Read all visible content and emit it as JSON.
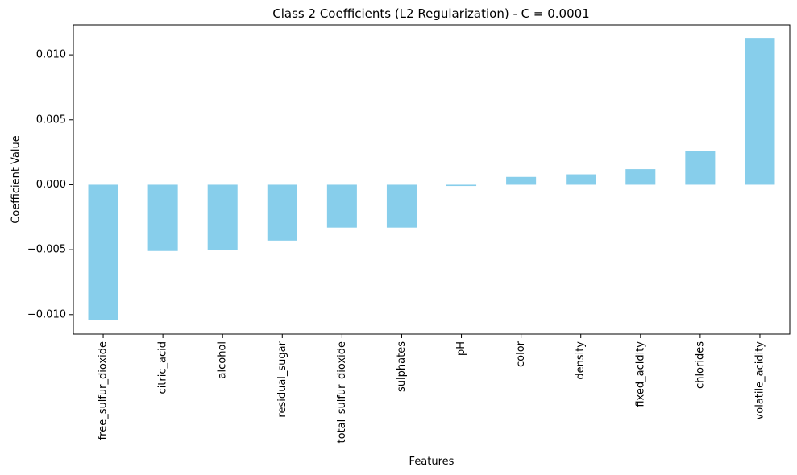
{
  "chart_data": {
    "type": "bar",
    "title": "Class 2 Coefficients (L2 Regularization) - C = 0.0001",
    "xlabel": "Features",
    "ylabel": "Coefficient Value",
    "categories": [
      "free_sulfur_dioxide",
      "citric_acid",
      "alcohol",
      "residual_sugar",
      "total_sulfur_dioxide",
      "sulphates",
      "pH",
      "color",
      "density",
      "fixed_acidity",
      "chlorides",
      "volatile_acidity"
    ],
    "values": [
      -0.0104,
      -0.0051,
      -0.005,
      -0.0043,
      -0.0033,
      -0.0033,
      -0.0001,
      0.0006,
      0.0008,
      0.0012,
      0.0026,
      0.0113
    ],
    "ylim": [
      -0.0115,
      0.0123
    ],
    "yticks": [
      -0.01,
      -0.005,
      0.0,
      0.005,
      0.01
    ],
    "ytick_labels": [
      "−0.010",
      "−0.005",
      "0.000",
      "0.005",
      "0.010"
    ],
    "bar_color": "#87CEEB",
    "grid": false,
    "legend": "none"
  }
}
